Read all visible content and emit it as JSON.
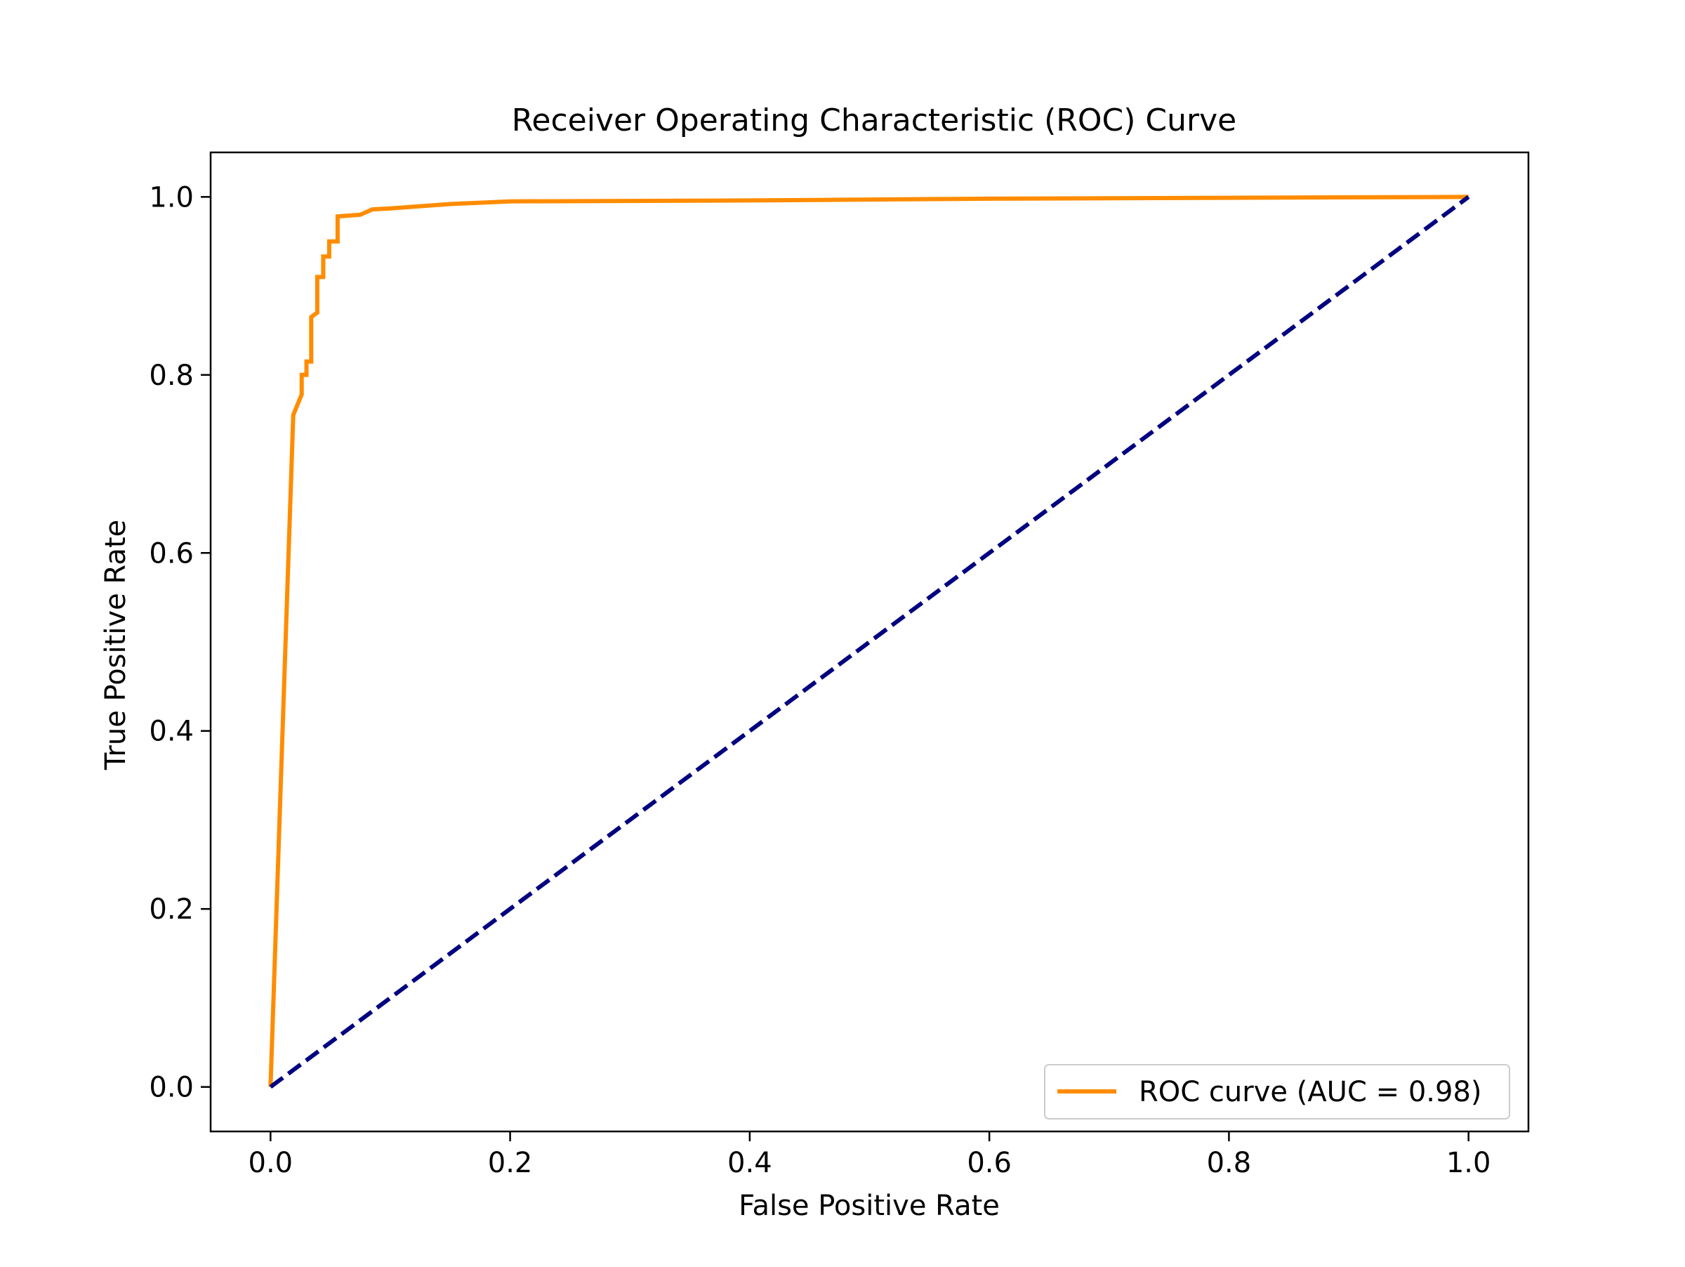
{
  "chart_data": {
    "type": "line",
    "title": "Receiver Operating Characteristic (ROC) Curve",
    "xlabel": "False Positive Rate",
    "ylabel": "True Positive Rate",
    "xlim": [
      -0.05,
      1.05
    ],
    "ylim": [
      -0.05,
      1.05
    ],
    "xticks": [
      0.0,
      0.2,
      0.4,
      0.6,
      0.8,
      1.0
    ],
    "xtick_labels": [
      "0.0",
      "0.2",
      "0.4",
      "0.6",
      "0.8",
      "1.0"
    ],
    "yticks": [
      0.0,
      0.2,
      0.4,
      0.6,
      0.8,
      1.0
    ],
    "ytick_labels": [
      "0.0",
      "0.2",
      "0.4",
      "0.6",
      "0.8",
      "1.0"
    ],
    "grid": false,
    "legend_position": "lower right",
    "series": [
      {
        "name": "ROC curve (AUC = 0.98)",
        "color": "#ff8c00",
        "style": "solid",
        "x": [
          0.0,
          0.019,
          0.026,
          0.026,
          0.03,
          0.03,
          0.034,
          0.034,
          0.039,
          0.039,
          0.044,
          0.044,
          0.049,
          0.049,
          0.056,
          0.056,
          0.075,
          0.085,
          0.1,
          0.15,
          0.2,
          0.4,
          0.6,
          0.8,
          1.0
        ],
        "y": [
          0.0,
          0.755,
          0.778,
          0.8,
          0.8,
          0.815,
          0.815,
          0.865,
          0.87,
          0.91,
          0.91,
          0.933,
          0.933,
          0.95,
          0.95,
          0.978,
          0.98,
          0.986,
          0.987,
          0.992,
          0.995,
          0.996,
          0.998,
          0.999,
          1.0
        ]
      },
      {
        "color": "#000080",
        "style": "dashed",
        "x": [
          0.0,
          1.0
        ],
        "y": [
          0.0,
          1.0
        ]
      }
    ]
  }
}
